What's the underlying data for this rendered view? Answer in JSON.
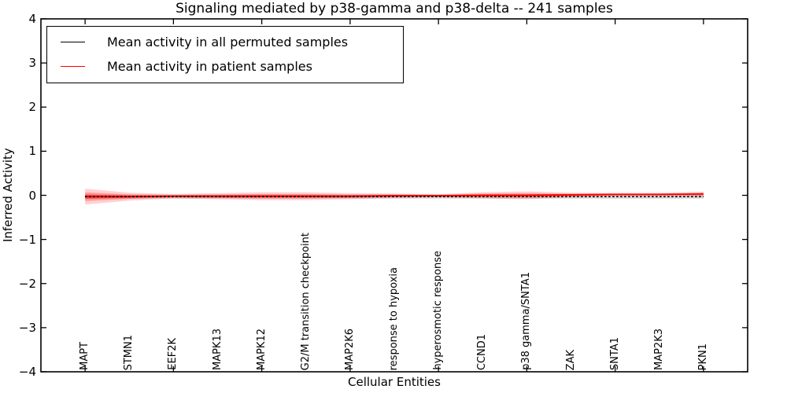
{
  "figure": {
    "title": "Signaling mediated by p38-gamma and p38-delta -- 241 samples",
    "xlabel": "Cellular Entities",
    "ylabel": "Inferred Activity"
  },
  "legend": {
    "position": "upper left",
    "entries": [
      {
        "label": "Mean activity in all permuted samples",
        "color": "#000000"
      },
      {
        "label": "Mean activity in patient samples",
        "color": "#ff0000"
      }
    ]
  },
  "chart_data": {
    "type": "line",
    "title": "Signaling mediated by p38-gamma and p38-delta -- 241 samples",
    "xlabel": "Cellular Entities",
    "ylabel": "Inferred Activity",
    "ylim": [
      -4,
      4
    ],
    "yticks": [
      4,
      3,
      2,
      1,
      0,
      -1,
      -2,
      -3,
      -4
    ],
    "ytick_labels": [
      "4",
      "3",
      "2",
      "1",
      "0",
      "−1",
      "−2",
      "−3",
      "−4"
    ],
    "xticks_major_at": [
      0,
      2,
      4,
      6,
      8,
      10,
      12,
      14
    ],
    "grid": false,
    "legend_position": "upper left",
    "categories": [
      "MAPT",
      "STMN1",
      "EEF2K",
      "MAPK13",
      "MAPK12",
      "G2/M transition checkpoint",
      "MAP2K6",
      "response to hypoxia",
      "hyperosmotic response",
      "CCND1",
      "p38 gamma/SNTA1",
      "ZAK",
      "SNTA1",
      "MAP2K3",
      "PKN1"
    ],
    "series": [
      {
        "name": "Mean activity in all permuted samples",
        "color": "#000000",
        "line_style": "dashed",
        "values": [
          -0.03,
          -0.03,
          -0.03,
          -0.03,
          -0.03,
          -0.03,
          -0.03,
          -0.03,
          -0.03,
          -0.03,
          -0.03,
          -0.03,
          -0.03,
          -0.03,
          -0.03
        ],
        "std": [
          0.045,
          0.045,
          0.045,
          0.045,
          0.045,
          0.045,
          0.045,
          0.045,
          0.045,
          0.045,
          0.045,
          0.045,
          0.045,
          0.045,
          0.045
        ],
        "band_color": "#aaaaaa"
      },
      {
        "name": "Mean activity in patient samples",
        "color": "#ff0000",
        "line_style": "solid",
        "values": [
          -0.03,
          -0.03,
          -0.02,
          -0.02,
          -0.02,
          -0.02,
          -0.02,
          -0.01,
          -0.01,
          0.0,
          0.0,
          0.01,
          0.02,
          0.02,
          0.03
        ],
        "std": [
          0.18,
          0.09,
          0.05,
          0.07,
          0.09,
          0.09,
          0.07,
          0.05,
          0.035,
          0.07,
          0.09,
          0.05,
          0.035,
          0.035,
          0.05
        ],
        "band_color": "#ff0000"
      }
    ]
  }
}
